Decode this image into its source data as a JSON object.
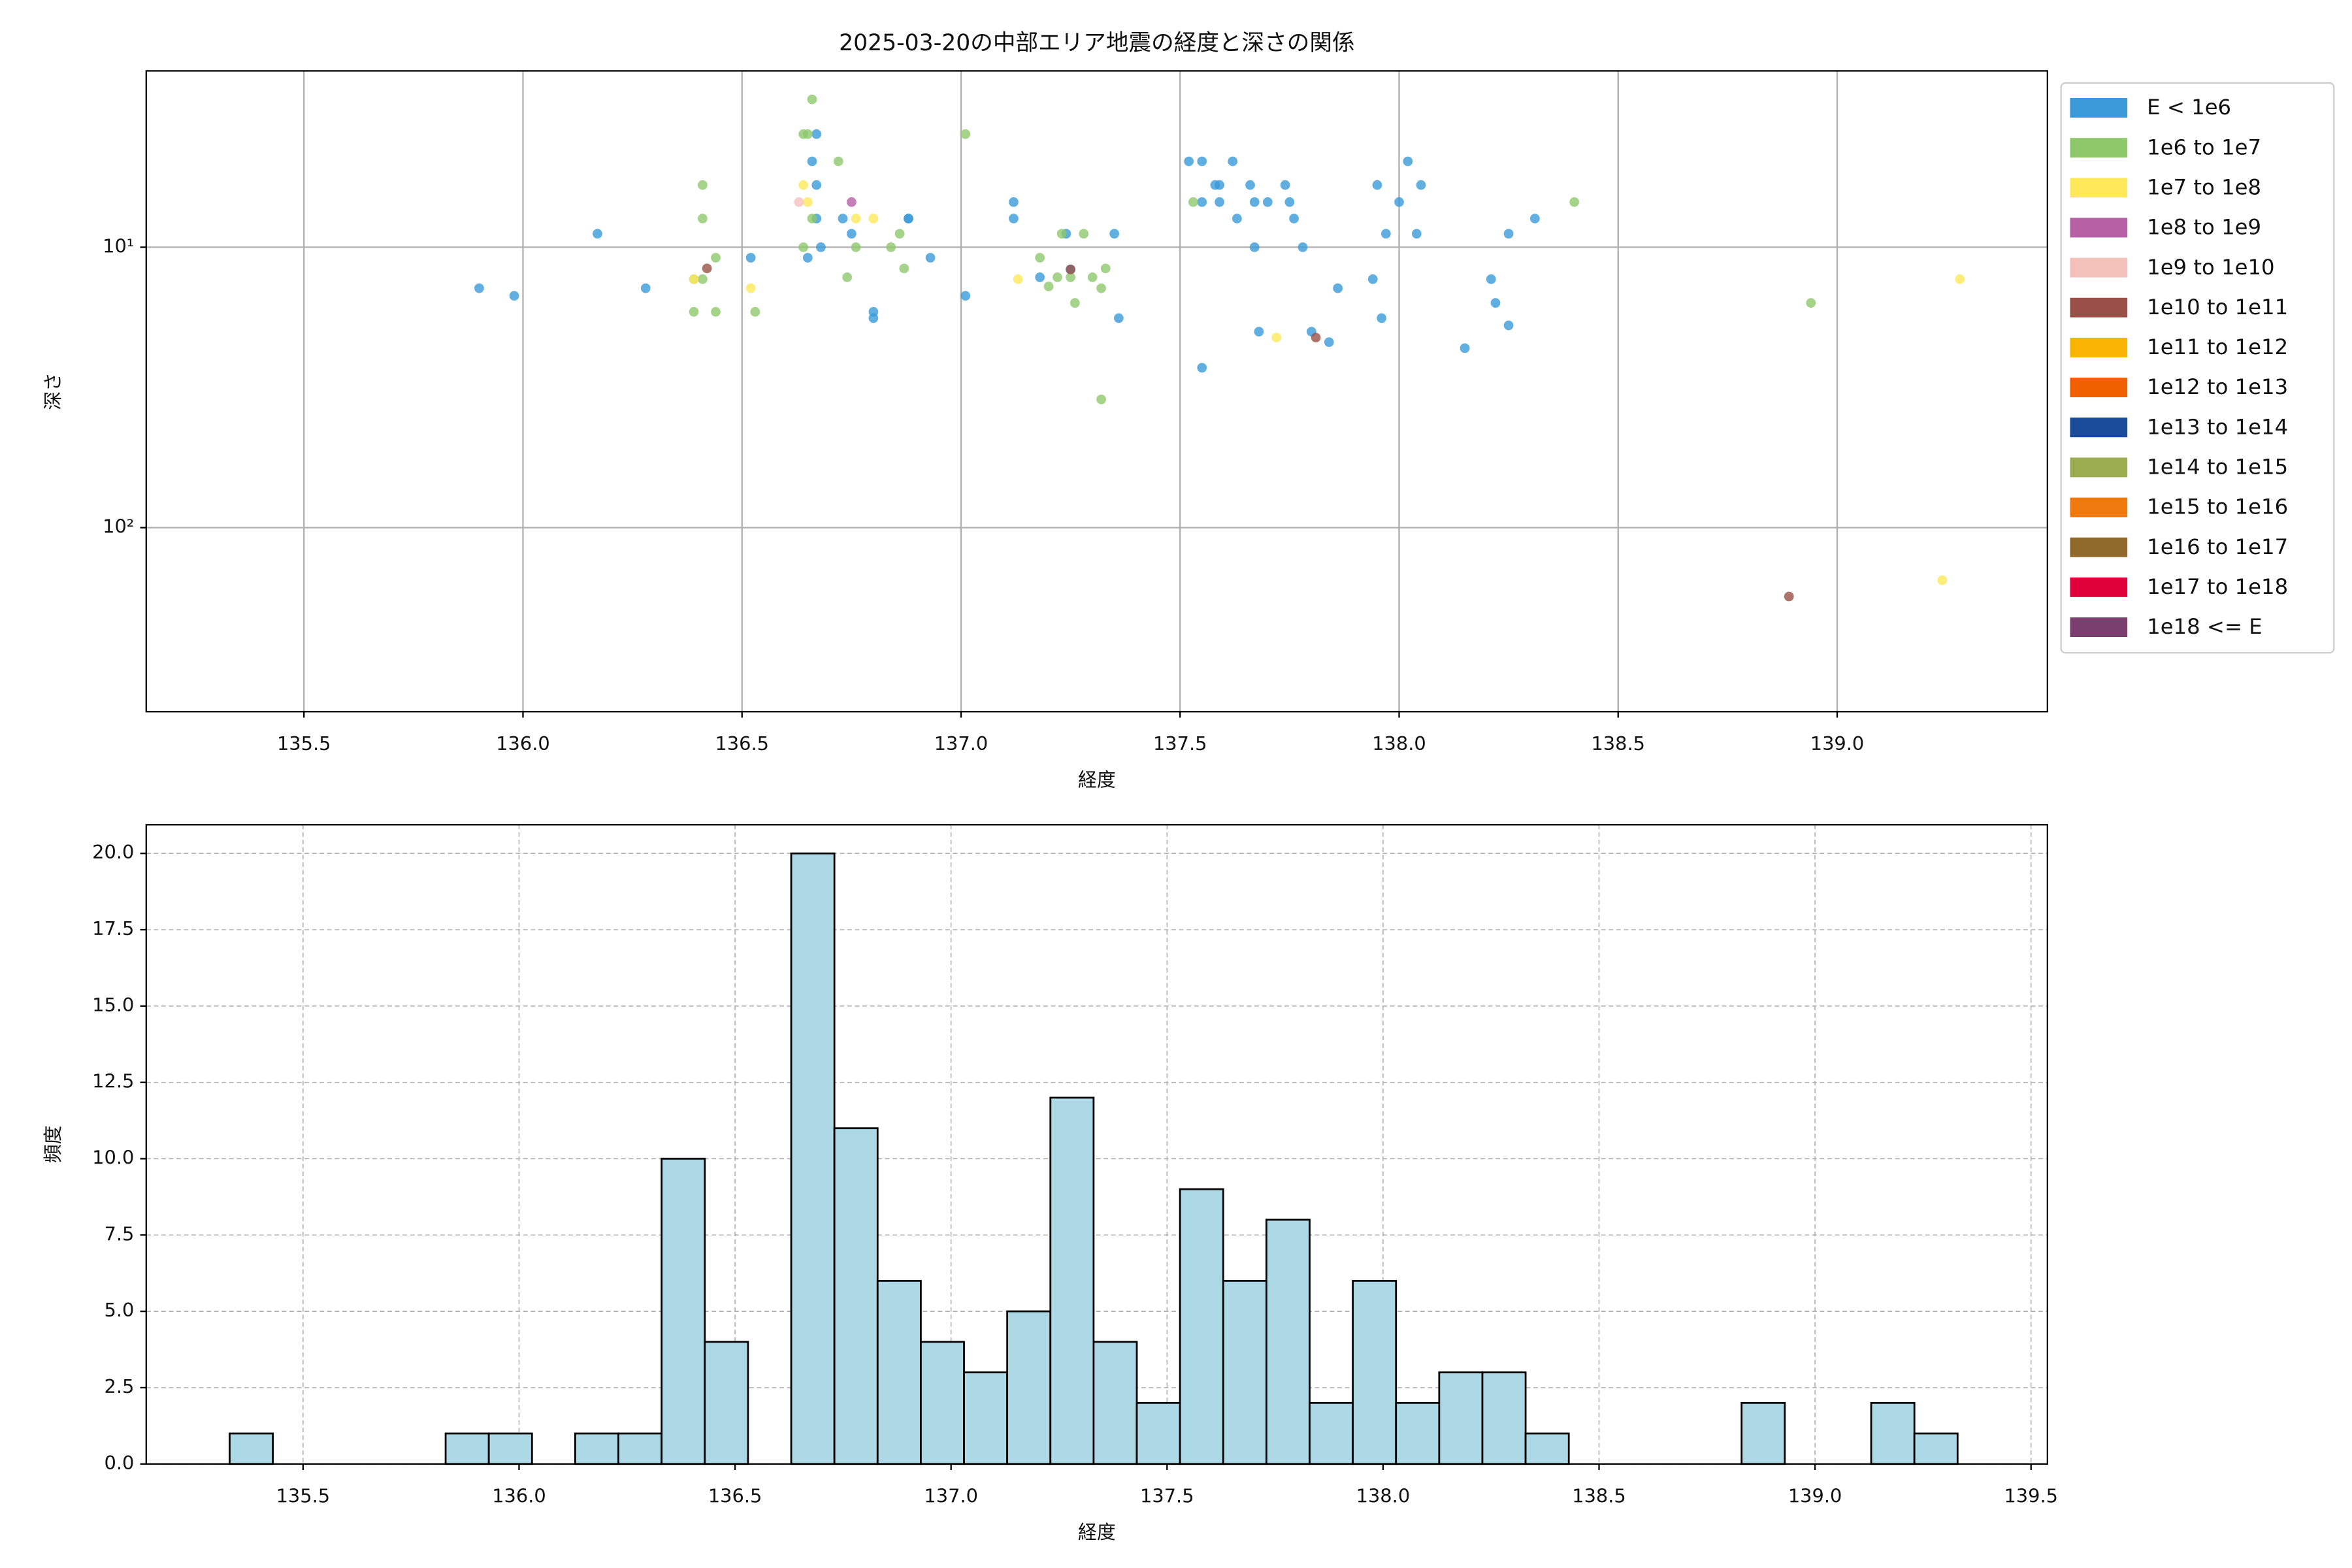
{
  "chart_data": [
    {
      "type": "scatter",
      "title": "2025-03-20の中部エリア地震の経度と深さの関係",
      "x_label": "経度",
      "y_label": "深さ",
      "xlim": [
        135.14,
        139.48
      ],
      "ylim": [
        2.35,
        453
      ],
      "log_y": true,
      "y_inverted": true,
      "grid": true,
      "legend": "outside right",
      "xticks": [
        {
          "value": 135.5,
          "label": "135.5"
        },
        {
          "value": 136,
          "label": "136.0"
        },
        {
          "value": 136.5,
          "label": "136.5"
        },
        {
          "value": 137,
          "label": "137.0"
        },
        {
          "value": 137.5,
          "label": "137.5"
        },
        {
          "value": 138,
          "label": "138.0"
        },
        {
          "value": 138.5,
          "label": "138.5"
        },
        {
          "value": 139,
          "label": "139.0"
        }
      ],
      "yticks": [
        {
          "value": 10,
          "label": "10¹"
        },
        {
          "value": 100,
          "label": "10²"
        }
      ],
      "series": [
        {
          "name": "E < 1e6",
          "color": "#3a9ad9",
          "x": [
            135.9,
            135.98,
            136.17,
            136.28,
            136.52,
            136.65,
            136.66,
            136.67,
            136.67,
            136.67,
            136.68,
            136.73,
            136.75,
            136.8,
            136.8,
            136.88,
            136.88,
            136.93,
            137.01,
            137.12,
            137.12,
            137.18,
            137.24,
            137.25,
            137.35,
            137.36,
            137.52,
            137.55,
            137.55,
            137.58,
            137.59,
            137.59,
            137.55,
            137.62,
            137.63,
            137.66,
            137.67,
            137.67,
            137.68,
            137.7,
            137.74,
            137.75,
            137.76,
            137.78,
            137.8,
            137.84,
            137.86,
            137.94,
            137.95,
            137.96,
            137.97,
            138.0,
            138.02,
            138.04,
            138.05,
            138.15,
            138.21,
            138.22,
            138.25,
            138.25,
            138.31
          ],
          "values": [
            14.0,
            14.9,
            8.95,
            14.0,
            10.9,
            10.9,
            4.94,
            3.95,
            6.0,
            7.9,
            10,
            7.9,
            8.95,
            17.0,
            17.9,
            7.9,
            7.9,
            10.9,
            14.9,
            6.9,
            7.9,
            12.8,
            8.95,
            12.0,
            8.95,
            17.9,
            4.94,
            4.94,
            6.9,
            6.0,
            6.0,
            6.9,
            26.9,
            4.94,
            7.9,
            6.0,
            6.9,
            10,
            20,
            6.9,
            6.0,
            6.9,
            7.9,
            10,
            20,
            21.8,
            14,
            13,
            6.0,
            17.9,
            8.95,
            6.9,
            4.94,
            8.95,
            6.0,
            22.9,
            13,
            15.8,
            19,
            8.95,
            7.9
          ]
        },
        {
          "name": "1e6 to 1e7",
          "color": "#8fc86b",
          "x": [
            136.39,
            136.39,
            136.41,
            136.41,
            136.41,
            136.44,
            136.44,
            136.53,
            136.64,
            136.65,
            136.66,
            136.64,
            136.66,
            136.72,
            136.74,
            136.76,
            136.84,
            136.86,
            136.87,
            137.01,
            137.18,
            137.2,
            137.22,
            137.23,
            137.25,
            137.26,
            137.28,
            137.3,
            137.32,
            137.33,
            137.32,
            137.53,
            138.4,
            138.94
          ],
          "values": [
            17,
            13,
            6,
            7.9,
            13,
            10.9,
            17,
            17,
            3.95,
            3.95,
            2.97,
            10,
            7.9,
            4.94,
            12.8,
            10,
            10,
            8.95,
            11.9,
            3.95,
            10.9,
            13.8,
            12.8,
            8.95,
            12.8,
            15.8,
            8.95,
            12.8,
            14,
            11.9,
            34.9,
            6.9,
            6.9,
            15.8
          ]
        },
        {
          "name": "1e7 to 1e8",
          "color": "#ffe95a",
          "x": [
            136.39,
            136.52,
            136.64,
            136.65,
            136.76,
            136.8,
            137.13,
            137.72,
            139.28,
            139.24
          ],
          "values": [
            13,
            14,
            6,
            6.9,
            7.9,
            7.9,
            13,
            21,
            13,
            154
          ]
        },
        {
          "name": "1e8 to 1e9",
          "color": "#b660a6",
          "x": [
            136.75
          ],
          "values": [
            6.9
          ]
        },
        {
          "name": "1e9 to 1e10",
          "color": "#f4c0ba",
          "x": [
            136.63
          ],
          "values": [
            6.9
          ]
        },
        {
          "name": "1e10 to 1e11",
          "color": "#9a5046",
          "x": [
            136.42,
            137.25,
            137.81,
            138.89
          ],
          "values": [
            11.9,
            12.0,
            21,
            176
          ]
        },
        {
          "name": "1e11 to 1e12",
          "color": "#f8b400",
          "x": [],
          "values": []
        },
        {
          "name": "1e12 to 1e13",
          "color": "#f06000",
          "x": [],
          "values": []
        },
        {
          "name": "1e13 to 1e14",
          "color": "#1a4a9a",
          "x": [],
          "values": []
        },
        {
          "name": "1e14 to 1e15",
          "color": "#9aab50",
          "x": [],
          "values": []
        },
        {
          "name": "1e15 to 1e16",
          "color": "#f07a10",
          "x": [],
          "values": []
        },
        {
          "name": "1e16 to 1e17",
          "color": "#8f6a2a",
          "x": [],
          "values": []
        },
        {
          "name": "1e17 to 1e18",
          "color": "#e0003a",
          "x": [],
          "values": []
        },
        {
          "name": "1e18 <= E",
          "color": "#7a3f6e",
          "x": [],
          "values": []
        }
      ]
    },
    {
      "type": "histogram",
      "x_label": "経度",
      "y_label": "頻度",
      "color": "#add8e6",
      "edge_color": "#000000",
      "grid": true,
      "grid_style": "dashed",
      "xlim": [
        135.137,
        139.538
      ],
      "ylim": [
        0,
        20.94
      ],
      "xticks": [
        {
          "value": 135.5,
          "label": "135.5"
        },
        {
          "value": 136,
          "label": "136.0"
        },
        {
          "value": 136.5,
          "label": "136.5"
        },
        {
          "value": 137,
          "label": "137.0"
        },
        {
          "value": 137.5,
          "label": "137.5"
        },
        {
          "value": 138,
          "label": "138.0"
        },
        {
          "value": 138.5,
          "label": "138.5"
        },
        {
          "value": 139,
          "label": "139.0"
        },
        {
          "value": 139.5,
          "label": "139.5"
        }
      ],
      "yticks": [
        {
          "value": 0,
          "label": "0.0"
        },
        {
          "value": 2.5,
          "label": "2.5"
        },
        {
          "value": 5,
          "label": "5.0"
        },
        {
          "value": 7.5,
          "label": "7.5"
        },
        {
          "value": 10,
          "label": "10.0"
        },
        {
          "value": 12.5,
          "label": "12.5"
        },
        {
          "value": 15,
          "label": "15.0"
        },
        {
          "value": 17.5,
          "label": "17.5"
        },
        {
          "value": 20,
          "label": "20.0"
        }
      ],
      "bins": [
        135.33,
        135.43,
        135.53,
        135.63,
        135.73,
        135.83,
        135.93,
        136.03,
        136.13,
        136.23,
        136.33,
        136.43,
        136.53,
        136.63,
        136.73,
        136.83,
        136.93,
        137.03,
        137.13,
        137.23,
        137.33,
        137.43,
        137.53,
        137.63,
        137.73,
        137.83,
        137.93,
        138.03,
        138.13,
        138.23,
        138.33,
        138.43,
        138.53,
        138.63,
        138.73,
        138.83,
        138.93,
        139.03,
        139.13,
        139.23,
        139.33
      ],
      "values": [
        1,
        0,
        0,
        0,
        0,
        1,
        1,
        0,
        1,
        1,
        10,
        4,
        0,
        20,
        11,
        6,
        4,
        3,
        5,
        12,
        4,
        2,
        9,
        6,
        8,
        2,
        6,
        2,
        3,
        3,
        1,
        0,
        0,
        0,
        0,
        2,
        0,
        0,
        2,
        1
      ]
    }
  ]
}
